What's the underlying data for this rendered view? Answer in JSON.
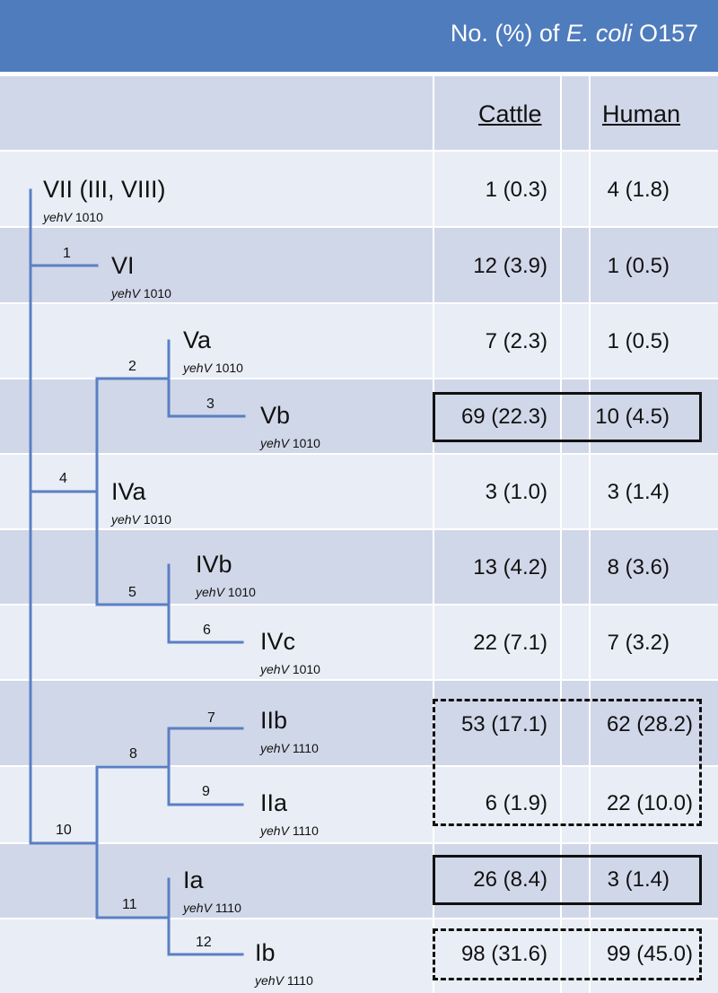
{
  "header": {
    "title_prefix": "No. (%) of ",
    "title_italic": "E. coli",
    "title_suffix": " O157"
  },
  "columns": {
    "cattle": "Cattle",
    "human": "Human"
  },
  "gene_label": "yehV",
  "rows": [
    {
      "label": "VII (III, VIII)",
      "gene_code": "1010",
      "cattle": "1 (0.3)",
      "human": "4 (1.8)"
    },
    {
      "label": "VI",
      "gene_code": "1010",
      "cattle": "12 (3.9)",
      "human": "1 (0.5)"
    },
    {
      "label": "Va",
      "gene_code": "1010",
      "cattle": "7 (2.3)",
      "human": "1 (0.5)"
    },
    {
      "label": "Vb",
      "gene_code": "1010",
      "cattle": "69 (22.3)",
      "human": "10 (4.5)"
    },
    {
      "label": "IVa",
      "gene_code": "1010",
      "cattle": "3 (1.0)",
      "human": "3 (1.4)"
    },
    {
      "label": "IVb",
      "gene_code": "1010",
      "cattle": "13 (4.2)",
      "human": "8 (3.6)"
    },
    {
      "label": "IVc",
      "gene_code": "1010",
      "cattle": "22 (7.1)",
      "human": "7 (3.2)"
    },
    {
      "label": "IIb",
      "gene_code": "1110",
      "cattle": "53 (17.1)",
      "human": "62 (28.2)"
    },
    {
      "label": "IIa",
      "gene_code": "1110",
      "cattle": "6 (1.9)",
      "human": "22 (10.0)"
    },
    {
      "label": "Ia",
      "gene_code": "1110",
      "cattle": "26 (8.4)",
      "human": "3 (1.4)"
    },
    {
      "label": "Ib",
      "gene_code": "1110",
      "cattle": "98 (31.6)",
      "human": "99 (45.0)"
    }
  ],
  "branch_numbers": [
    "1",
    "2",
    "3",
    "4",
    "5",
    "6",
    "7",
    "8",
    "9",
    "10",
    "11",
    "12"
  ],
  "colors": {
    "header": "#4f7cbd",
    "band_dark": "#d0d7e8",
    "band_light": "#e9edf5",
    "tree_line": "#5a7fc4"
  }
}
